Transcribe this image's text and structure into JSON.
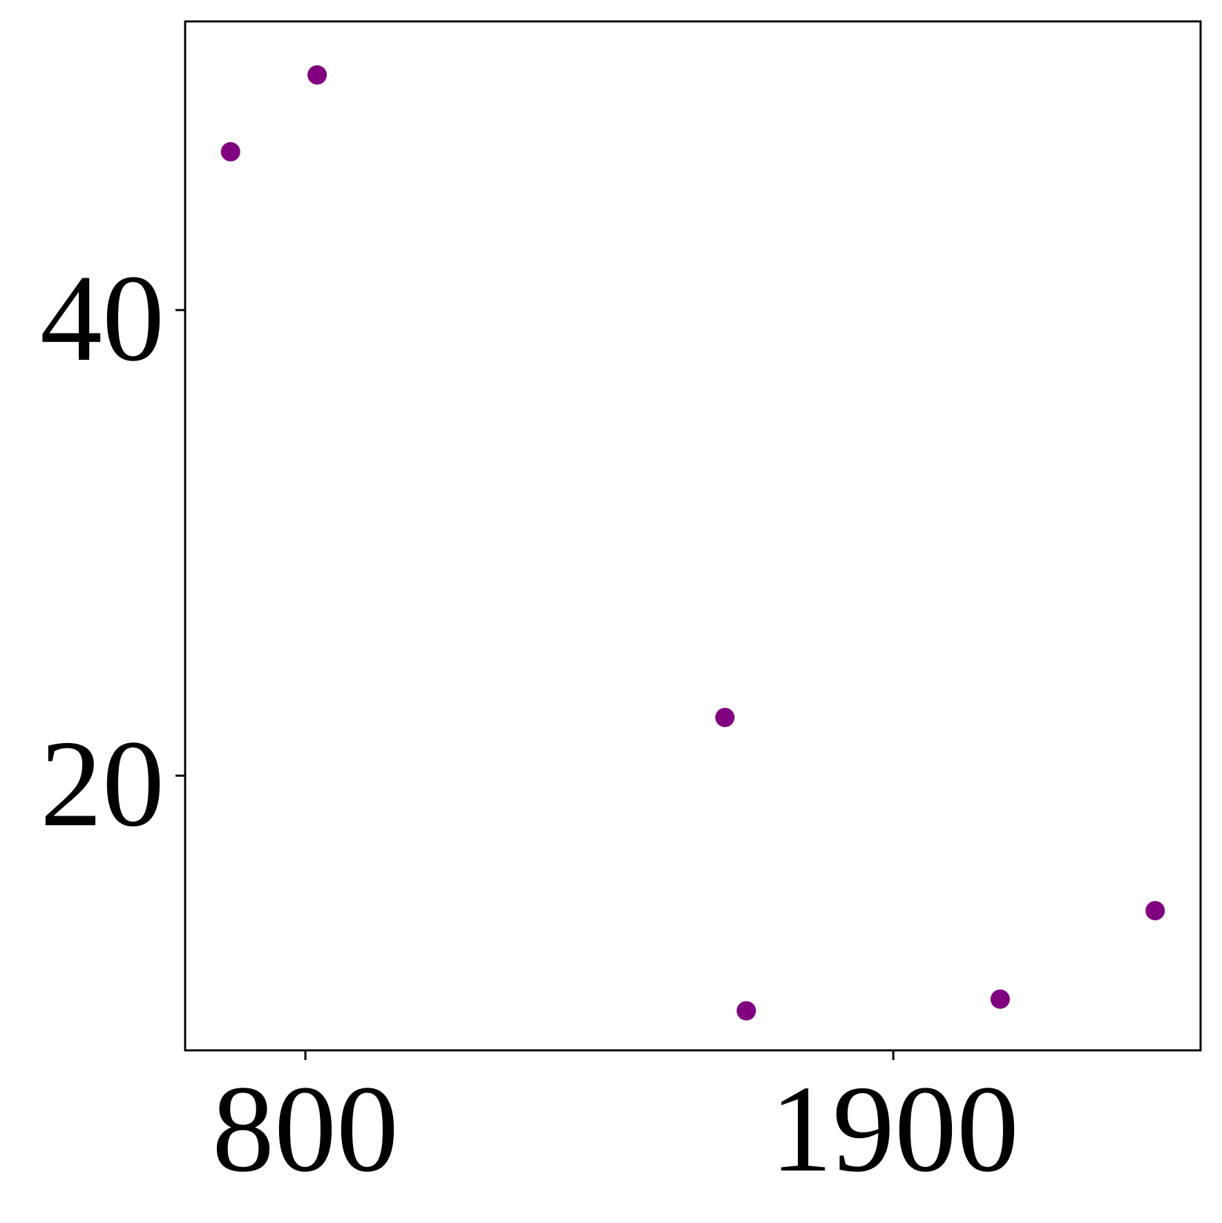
{
  "chart_data": {
    "type": "scatter",
    "title": "",
    "xlabel": "",
    "ylabel": "",
    "x_ticks": [
      {
        "value": 800,
        "label": "800"
      },
      {
        "value": 1900,
        "label": "1900"
      }
    ],
    "y_ticks": [
      {
        "value": 20,
        "label": "20"
      },
      {
        "value": 40,
        "label": "40"
      }
    ],
    "xlim": [
      575,
      2475
    ],
    "ylim": [
      8.2,
      52.4
    ],
    "grid": false,
    "marker_color": "#800080",
    "points": [
      {
        "x": 660,
        "y": 46.8
      },
      {
        "x": 822,
        "y": 50.1
      },
      {
        "x": 1585,
        "y": 22.5
      },
      {
        "x": 1625,
        "y": 9.9
      },
      {
        "x": 2100,
        "y": 10.4
      },
      {
        "x": 2390,
        "y": 14.2
      }
    ]
  }
}
